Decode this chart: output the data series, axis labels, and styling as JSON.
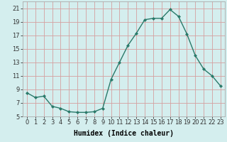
{
  "x": [
    0,
    1,
    2,
    3,
    4,
    5,
    6,
    7,
    8,
    9,
    10,
    11,
    12,
    13,
    14,
    15,
    16,
    17,
    18,
    19,
    20,
    21,
    22,
    23
  ],
  "y": [
    8.5,
    7.8,
    8.0,
    6.5,
    6.2,
    5.7,
    5.6,
    5.6,
    5.7,
    6.2,
    10.5,
    13.0,
    15.5,
    17.3,
    19.3,
    19.5,
    19.5,
    20.8,
    19.8,
    17.2,
    14.0,
    12.0,
    11.0,
    9.5
  ],
  "line_color": "#2a7a6a",
  "marker": "D",
  "marker_size": 2.0,
  "bg_color": "#d4eeee",
  "grid_color": "#d4a0a0",
  "xlabel": "Humidex (Indice chaleur)",
  "xlim": [
    -0.5,
    23.5
  ],
  "ylim": [
    5,
    22
  ],
  "yticks": [
    5,
    7,
    9,
    11,
    13,
    15,
    17,
    19,
    21
  ],
  "xticks": [
    0,
    1,
    2,
    3,
    4,
    5,
    6,
    7,
    8,
    9,
    10,
    11,
    12,
    13,
    14,
    15,
    16,
    17,
    18,
    19,
    20,
    21,
    22,
    23
  ],
  "xtick_labels": [
    "0",
    "1",
    "2",
    "3",
    "4",
    "5",
    "6",
    "7",
    "8",
    "9",
    "10",
    "11",
    "12",
    "13",
    "14",
    "15",
    "16",
    "17",
    "18",
    "19",
    "20",
    "21",
    "22",
    "23"
  ],
  "xlabel_fontsize": 7,
  "tick_fontsize": 6,
  "line_width": 1.0
}
